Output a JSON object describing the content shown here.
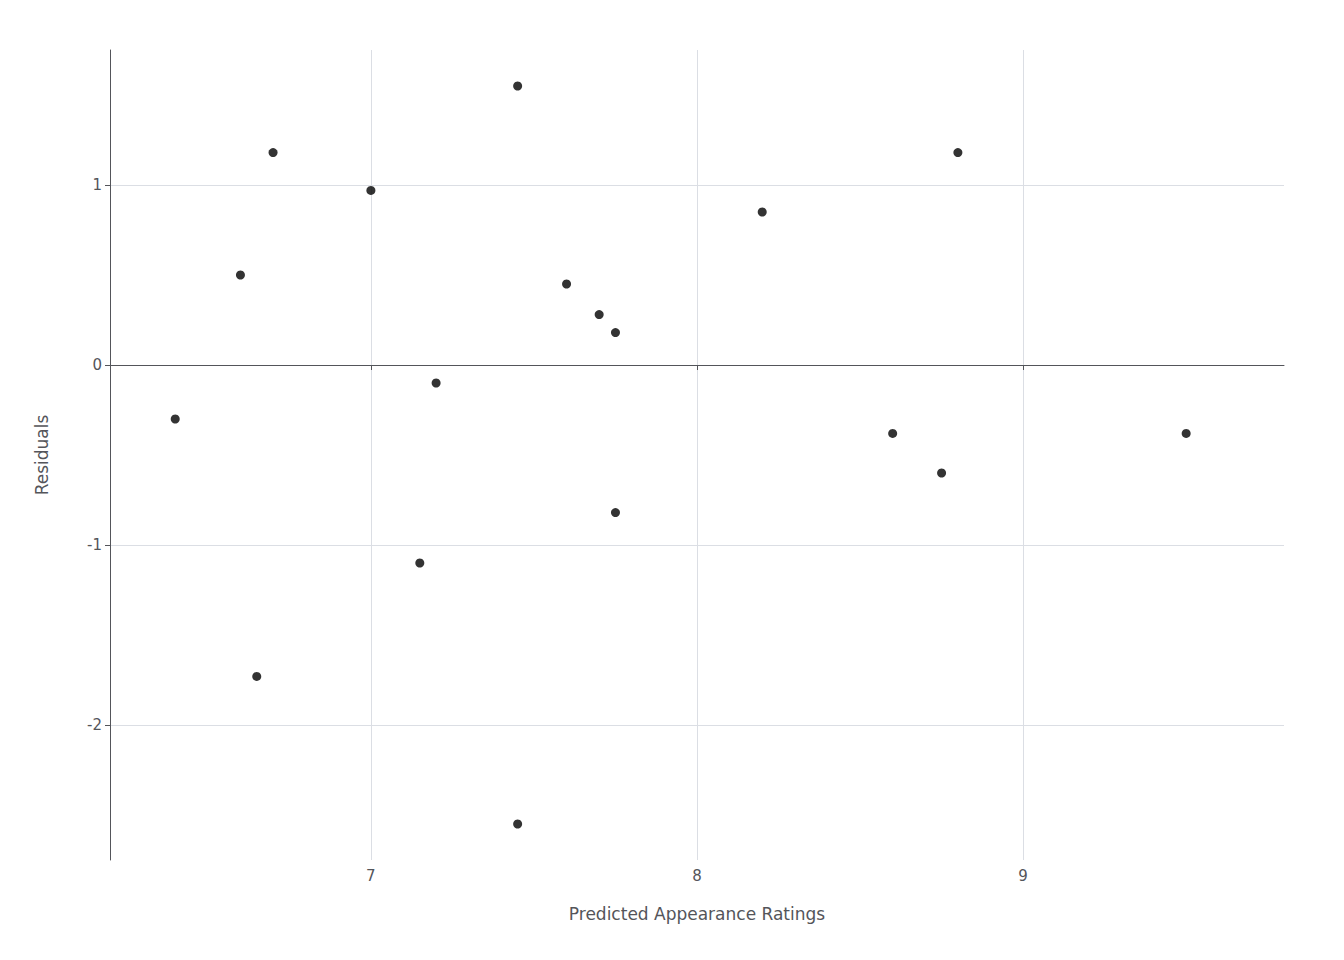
{
  "chart_data": {
    "type": "scatter",
    "x": [
      6.4,
      6.6,
      6.7,
      7.0,
      7.15,
      7.2,
      7.45,
      7.6,
      7.7,
      7.75,
      7.75,
      8.2,
      8.6,
      8.75,
      8.8,
      9.5,
      6.65,
      7.45
    ],
    "y": [
      -0.3,
      0.5,
      1.18,
      0.97,
      -1.1,
      -0.1,
      1.55,
      0.45,
      0.28,
      0.18,
      -0.82,
      0.85,
      -0.38,
      -0.6,
      1.18,
      -0.38,
      -1.73,
      -2.55
    ],
    "xlabel": "Predicted Appearance Ratings",
    "ylabel": "Residuals",
    "xlim": [
      6.2,
      9.8
    ],
    "ylim": [
      -2.75,
      1.75
    ],
    "xticks": [
      7,
      8,
      9
    ],
    "yticks": [
      -2,
      -1,
      0,
      1
    ],
    "grid": true,
    "color": "#000000"
  }
}
